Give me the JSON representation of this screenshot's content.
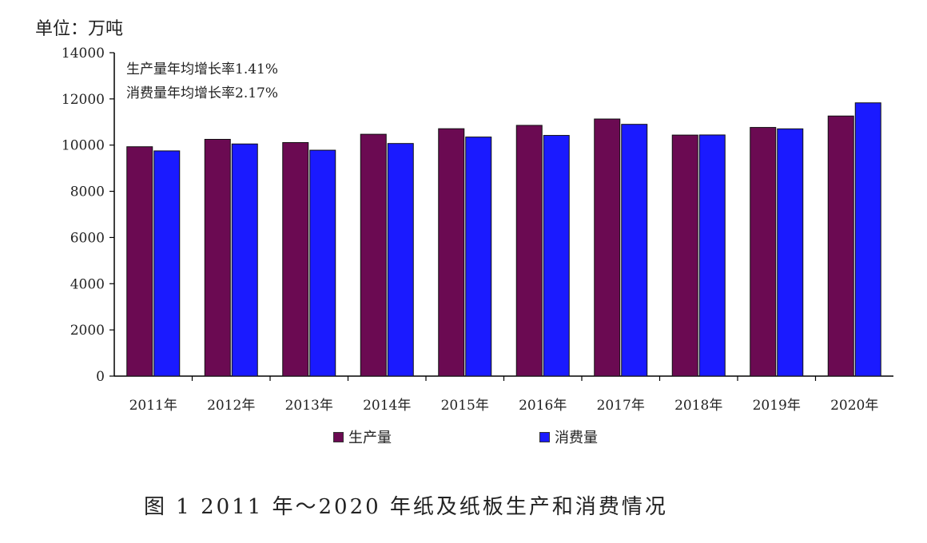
{
  "unit_label": "单位：万吨",
  "annotations": [
    "生产量年均增长率1.41%",
    "消费量年均增长率2.17%"
  ],
  "caption": "图 1  2011 年～2020 年纸及纸板生产和消费情况",
  "colors": {
    "production": "#6b0a52",
    "consumption": "#1a1aff"
  },
  "chart_data": {
    "type": "bar",
    "title": "",
    "xlabel": "",
    "ylabel": "",
    "ylim": [
      0,
      14000
    ],
    "yticks": [
      "0",
      "2000",
      "4000",
      "6000",
      "8000",
      "10000",
      "12000",
      "14000"
    ],
    "categories": [
      "2011年",
      "2012年",
      "2013年",
      "2014年",
      "2015年",
      "2016年",
      "2017年",
      "2018年",
      "2019年",
      "2020年"
    ],
    "series": [
      {
        "name": "生产量",
        "values": [
          9930,
          10250,
          10110,
          10470,
          10710,
          10855,
          11130,
          10435,
          10765,
          11260
        ]
      },
      {
        "name": "消费量",
        "values": [
          9750,
          10050,
          9780,
          10070,
          10350,
          10420,
          10900,
          10440,
          10705,
          11830
        ]
      }
    ],
    "legend_position": "bottom",
    "grid": false
  }
}
